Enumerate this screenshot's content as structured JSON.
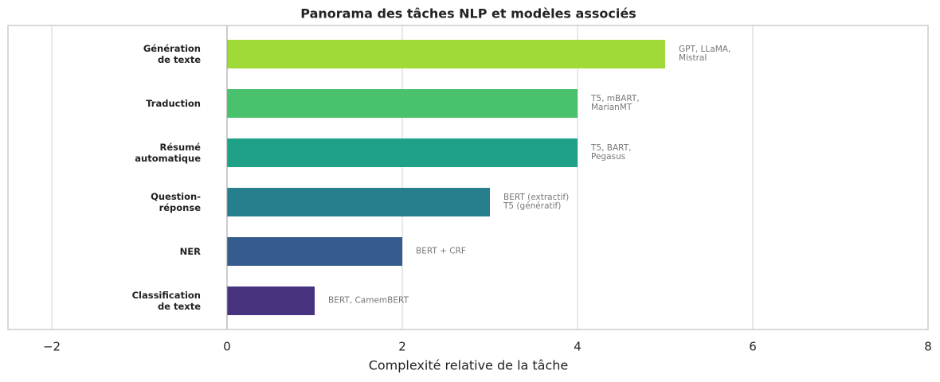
{
  "chart_data": {
    "type": "barh",
    "title": "Panorama des tâches NLP et modèles associés",
    "xlabel": "Complexité relative de la tâche",
    "categories": [
      "Génération\nde texte",
      "Traduction",
      "Résumé\nautomatique",
      "Question-\nréponse",
      "NER",
      "Classification\nde texte"
    ],
    "values": [
      5,
      4,
      4,
      3,
      2,
      1
    ],
    "colors": [
      "#a0da39",
      "#4ac16d",
      "#1fa187",
      "#277f8e",
      "#365c8d",
      "#46327e"
    ],
    "annotations": [
      "GPT, LLaMA,\nMistral",
      "T5, mBART,\nMarianMT",
      "T5, BART,\nPegasus",
      "BERT (extractif)\nT5 (génératif)",
      "BERT + CRF",
      "BERT, CamemBERT"
    ],
    "xlim": [
      -2.5,
      8
    ],
    "xticks": [
      {
        "value": -2,
        "label": "−2"
      },
      0,
      2,
      4,
      6,
      8
    ],
    "grid": true
  }
}
